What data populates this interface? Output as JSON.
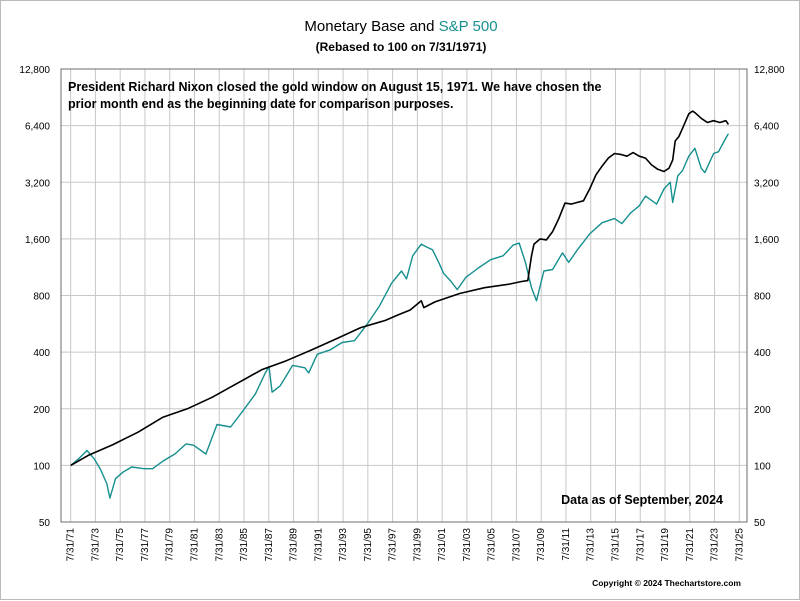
{
  "header": {
    "title_prefix": "Monetary Base and ",
    "title_highlight": "S&P 500",
    "subtitle": "(Rebased to 100 on 7/31/1971)"
  },
  "annotations": {
    "note": "President Richard Nixon closed the gold window on August 15, 1971.  We have chosen the prior month end as the beginning date for comparison purposes.",
    "as_of": "Data as of September, 2024",
    "copyright": "Copyright © 2024 Thechartstore.com"
  },
  "colors": {
    "monetary_base": "#000000",
    "sp500": "#168f8f",
    "grid": "#c8c8c8"
  },
  "chart_data": {
    "type": "line",
    "title": "Monetary Base and S&P 500",
    "subtitle": "(Rebased to 100 on 7/31/1971)",
    "y_scale": "log",
    "ylim": [
      50,
      12800
    ],
    "y_ticks": [
      "50",
      "100",
      "200",
      "400",
      "800",
      "1,600",
      "3,200",
      "6,400",
      "12,800"
    ],
    "y_tick_values": [
      50,
      100,
      200,
      400,
      800,
      1600,
      3200,
      6400,
      12800
    ],
    "x_ticks": [
      "7/31/71",
      "7/31/73",
      "7/31/75",
      "7/31/77",
      "7/31/79",
      "7/31/81",
      "7/31/83",
      "7/31/85",
      "7/31/87",
      "7/31/89",
      "7/31/91",
      "7/31/93",
      "7/31/95",
      "7/31/97",
      "7/31/99",
      "7/31/01",
      "7/31/03",
      "7/31/05",
      "7/31/07",
      "7/31/09",
      "7/31/11",
      "7/31/13",
      "7/31/15",
      "7/31/17",
      "7/31/19",
      "7/31/21",
      "7/31/23",
      "7/31/25"
    ],
    "x_tick_years": [
      1971.58,
      1973.58,
      1975.58,
      1977.58,
      1979.58,
      1981.58,
      1983.58,
      1985.58,
      1987.58,
      1989.58,
      1991.58,
      1993.58,
      1995.58,
      1997.58,
      1999.58,
      2001.58,
      2003.58,
      2005.58,
      2007.58,
      2009.58,
      2011.58,
      2013.58,
      2015.58,
      2017.58,
      2019.58,
      2021.58,
      2023.58,
      2025.58
    ],
    "grid": true,
    "series": [
      {
        "key": "monetary_base",
        "x": [
          1971.58,
          1973,
          1975,
          1977,
          1979,
          1981,
          1983,
          1985,
          1987,
          1989,
          1991,
          1993,
          1995,
          1997,
          1998,
          1999.0,
          1999.9,
          2000.1,
          2001,
          2003,
          2005,
          2007,
          2008.0,
          2008.5,
          2008.8,
          2009.0,
          2009.5,
          2010.0,
          2010.5,
          2011.0,
          2011.5,
          2012.0,
          2012.5,
          2013.0,
          2013.5,
          2014.0,
          2014.5,
          2015.0,
          2015.5,
          2016.0,
          2016.5,
          2017.0,
          2017.5,
          2018.0,
          2018.5,
          2019.0,
          2019.5,
          2019.9,
          2020.2,
          2020.4,
          2020.7,
          2021.0,
          2021.5,
          2021.8,
          2022.0,
          2022.5,
          2023.0,
          2023.5,
          2024.0,
          2024.5,
          2024.7
        ],
        "values": [
          100,
          113,
          129,
          150,
          180,
          200,
          230,
          272,
          322,
          360,
          410,
          470,
          540,
          590,
          630,
          670,
          750,
          690,
          740,
          820,
          880,
          920,
          950,
          960,
          1300,
          1500,
          1600,
          1580,
          1750,
          2050,
          2480,
          2450,
          2500,
          2550,
          2950,
          3500,
          3900,
          4300,
          4550,
          4500,
          4400,
          4600,
          4400,
          4300,
          3950,
          3750,
          3650,
          3800,
          4200,
          5300,
          5600,
          6200,
          7400,
          7650,
          7500,
          7000,
          6650,
          6800,
          6650,
          6800,
          6500
        ]
      },
      {
        "key": "sp500",
        "x": [
          1971.58,
          1972.2,
          1972.9,
          1973.5,
          1974.0,
          1974.5,
          1974.75,
          1975.2,
          1975.8,
          1976.5,
          1977.5,
          1978.2,
          1979.0,
          1980.0,
          1980.9,
          1981.5,
          1982.5,
          1983.4,
          1984.5,
          1985.5,
          1986.5,
          1987.3,
          1987.6,
          1987.85,
          1988.5,
          1989.5,
          1990.5,
          1990.8,
          1991.5,
          1992.5,
          1993.5,
          1994.5,
          1995.5,
          1996.5,
          1997.5,
          1998.3,
          1998.7,
          1999.2,
          1999.9,
          2000.3,
          2000.8,
          2001.3,
          2001.7,
          2002.3,
          2002.8,
          2003.5,
          2004.5,
          2005.5,
          2006.5,
          2007.3,
          2007.8,
          2008.3,
          2008.8,
          2009.2,
          2009.8,
          2010.5,
          2011.3,
          2011.8,
          2012.5,
          2013.5,
          2014.5,
          2015.5,
          2016.1,
          2016.8,
          2017.5,
          2018.0,
          2018.9,
          2019.5,
          2020.0,
          2020.2,
          2020.6,
          2021.0,
          2021.5,
          2021.99,
          2022.5,
          2022.8,
          2023.5,
          2023.9,
          2024.5,
          2024.7
        ],
        "values": [
          100,
          108,
          120,
          108,
          95,
          80,
          67,
          85,
          92,
          98,
          96,
          96,
          105,
          115,
          130,
          128,
          115,
          165,
          160,
          195,
          240,
          310,
          335,
          245,
          265,
          340,
          330,
          310,
          390,
          410,
          450,
          460,
          560,
          700,
          930,
          1080,
          980,
          1300,
          1500,
          1450,
          1400,
          1200,
          1050,
          950,
          860,
          1000,
          1120,
          1240,
          1300,
          1480,
          1520,
          1200,
          880,
          750,
          1080,
          1100,
          1350,
          1200,
          1400,
          1700,
          1950,
          2050,
          1930,
          2200,
          2400,
          2700,
          2450,
          2950,
          3200,
          2500,
          3450,
          3700,
          4400,
          4850,
          3800,
          3600,
          4550,
          4650,
          5500,
          5800
        ]
      }
    ]
  }
}
